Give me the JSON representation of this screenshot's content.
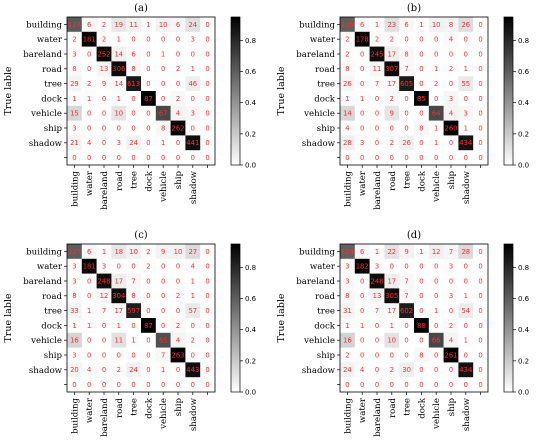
{
  "chart_data": [
    {
      "type": "heatmap",
      "title": "(a)",
      "ylabel": "True lable",
      "xlabel": "",
      "row_labels": [
        "building",
        "water",
        "bareland",
        "road",
        "tree",
        "dock",
        "vehicle",
        "ship",
        "shadow",
        ""
      ],
      "col_labels": [
        "building",
        "water",
        "bareland",
        "road",
        "tree",
        "dock",
        "vehicle",
        "ship",
        "shadow",
        ""
      ],
      "matrix": [
        [
          127,
          6,
          2,
          19,
          11,
          1,
          10,
          6,
          24,
          0
        ],
        [
          2,
          181,
          2,
          1,
          0,
          0,
          0,
          0,
          3,
          0
        ],
        [
          3,
          0,
          252,
          14,
          6,
          0,
          1,
          0,
          0,
          0
        ],
        [
          8,
          0,
          13,
          306,
          8,
          0,
          0,
          2,
          1,
          0
        ],
        [
          29,
          2,
          9,
          14,
          613,
          0,
          0,
          0,
          46,
          0
        ],
        [
          1,
          1,
          0,
          1,
          0,
          87,
          0,
          2,
          0,
          0
        ],
        [
          15,
          0,
          0,
          10,
          0,
          0,
          67,
          4,
          3,
          0
        ],
        [
          3,
          0,
          0,
          0,
          0,
          0,
          8,
          262,
          0,
          0
        ],
        [
          21,
          4,
          0,
          3,
          24,
          0,
          1,
          0,
          441,
          0
        ],
        [
          0,
          0,
          0,
          0,
          0,
          0,
          0,
          0,
          0,
          0
        ]
      ],
      "colorbar": {
        "min": 0.0,
        "max": 0.95,
        "ticks": [
          "0.0",
          "0.2",
          "0.4",
          "0.6",
          "0.8"
        ]
      }
    },
    {
      "type": "heatmap",
      "title": "(b)",
      "ylabel": "True lable",
      "xlabel": "",
      "row_labels": [
        "building",
        "water",
        "bareland",
        "road",
        "tree",
        "dock",
        "vehicle",
        "ship",
        "shadow",
        ""
      ],
      "col_labels": [
        "building",
        "water",
        "bareland",
        "road",
        "tree",
        "dock",
        "vehicle",
        "ship",
        "shadow",
        ""
      ],
      "matrix": [
        [
          120,
          6,
          1,
          23,
          6,
          1,
          10,
          8,
          26,
          0
        ],
        [
          2,
          178,
          2,
          2,
          0,
          0,
          0,
          4,
          0,
          0
        ],
        [
          2,
          0,
          245,
          17,
          8,
          0,
          0,
          0,
          0,
          0
        ],
        [
          8,
          0,
          11,
          307,
          7,
          0,
          1,
          2,
          1,
          0
        ],
        [
          26,
          0,
          7,
          17,
          605,
          0,
          2,
          0,
          55,
          0
        ],
        [
          1,
          1,
          0,
          2,
          0,
          85,
          0,
          3,
          0,
          0
        ],
        [
          14,
          0,
          0,
          9,
          0,
          0,
          64,
          4,
          3,
          0
        ],
        [
          4,
          0,
          0,
          0,
          0,
          8,
          1,
          260,
          1,
          0
        ],
        [
          28,
          3,
          0,
          2,
          26,
          0,
          1,
          0,
          434,
          0
        ],
        [
          0,
          0,
          0,
          0,
          0,
          0,
          0,
          0,
          0,
          0
        ]
      ],
      "colorbar": {
        "min": 0.0,
        "max": 0.95,
        "ticks": [
          "0.0",
          "0.2",
          "0.4",
          "0.6",
          "0.8"
        ]
      }
    },
    {
      "type": "heatmap",
      "title": "(c)",
      "ylabel": "True lable",
      "xlabel": "",
      "row_labels": [
        "building",
        "water",
        "bareland",
        "road",
        "tree",
        "dock",
        "vehicle",
        "ship",
        "shadow",
        ""
      ],
      "col_labels": [
        "building",
        "water",
        "bareland",
        "road",
        "tree",
        "dock",
        "vehicle",
        "ship",
        "shadow",
        ""
      ],
      "matrix": [
        [
          127,
          6,
          1,
          18,
          10,
          2,
          9,
          10,
          27,
          0
        ],
        [
          3,
          181,
          3,
          0,
          0,
          2,
          0,
          0,
          4,
          0
        ],
        [
          3,
          0,
          248,
          17,
          7,
          0,
          0,
          0,
          1,
          0
        ],
        [
          8,
          0,
          12,
          304,
          8,
          0,
          0,
          2,
          1,
          0
        ],
        [
          33,
          1,
          7,
          17,
          597,
          0,
          0,
          0,
          57,
          0
        ],
        [
          1,
          1,
          0,
          1,
          0,
          87,
          0,
          2,
          0,
          0
        ],
        [
          16,
          0,
          0,
          11,
          1,
          0,
          65,
          4,
          2,
          0
        ],
        [
          3,
          0,
          0,
          0,
          0,
          0,
          7,
          263,
          0,
          0
        ],
        [
          20,
          4,
          0,
          2,
          24,
          0,
          1,
          0,
          443,
          0
        ],
        [
          0,
          0,
          0,
          0,
          0,
          0,
          0,
          0,
          0,
          0
        ]
      ],
      "colorbar": {
        "min": 0.0,
        "max": 0.95,
        "ticks": [
          "0.0",
          "0.2",
          "0.4",
          "0.6",
          "0.8"
        ]
      }
    },
    {
      "type": "heatmap",
      "title": "(d)",
      "ylabel": "True lable",
      "xlabel": "",
      "row_labels": [
        "building",
        "water",
        "bareland",
        "road",
        "tree",
        "dock",
        "vehicle",
        "ship",
        "shadow",
        ""
      ],
      "col_labels": [
        "building",
        "water",
        "bareland",
        "road",
        "tree",
        "dock",
        "vehicle",
        "ship",
        "shadow",
        ""
      ],
      "matrix": [
        [
          124,
          6,
          1,
          22,
          9,
          1,
          12,
          7,
          28,
          0
        ],
        [
          3,
          182,
          3,
          0,
          0,
          0,
          0,
          3,
          0,
          0
        ],
        [
          3,
          0,
          248,
          17,
          7,
          0,
          0,
          0,
          0,
          0
        ],
        [
          8,
          0,
          13,
          305,
          7,
          0,
          0,
          3,
          1,
          0
        ],
        [
          31,
          0,
          7,
          17,
          602,
          0,
          1,
          0,
          54,
          0
        ],
        [
          1,
          1,
          0,
          1,
          0,
          88,
          0,
          2,
          0,
          0
        ],
        [
          16,
          0,
          0,
          10,
          0,
          0,
          66,
          4,
          1,
          0
        ],
        [
          2,
          0,
          0,
          0,
          0,
          8,
          0,
          261,
          0,
          0
        ],
        [
          24,
          4,
          0,
          2,
          30,
          0,
          0,
          0,
          434,
          0
        ],
        [
          0,
          0,
          0,
          0,
          0,
          0,
          0,
          0,
          0,
          0
        ]
      ],
      "colorbar": {
        "min": 0.0,
        "max": 0.95,
        "ticks": [
          "0.0",
          "0.2",
          "0.4",
          "0.6",
          "0.8"
        ]
      }
    }
  ]
}
